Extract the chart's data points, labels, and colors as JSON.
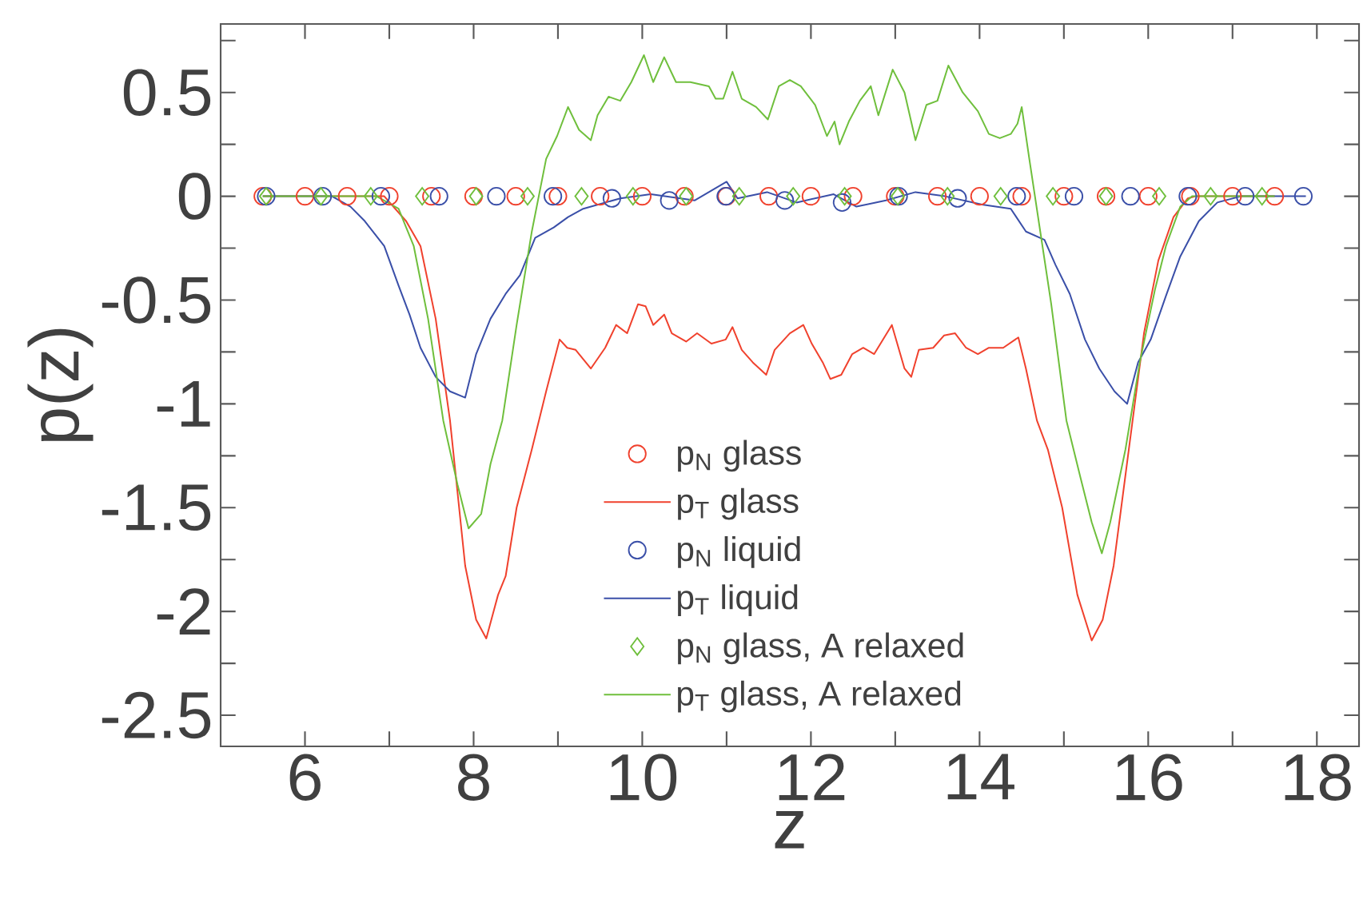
{
  "chart_data": {
    "type": "line",
    "xlabel": "z",
    "ylabel": "p(z)",
    "xlim": [
      5,
      18.5
    ],
    "ylim": [
      -2.65,
      0.83
    ],
    "xticks": [
      6,
      {
        "value": 7,
        "label": null
      },
      8,
      {
        "value": 9,
        "label": null
      },
      10,
      {
        "value": 11,
        "label": null
      },
      12,
      {
        "value": 13,
        "label": null
      },
      14,
      {
        "value": 15,
        "label": null
      },
      16,
      {
        "value": 17,
        "label": null
      },
      18
    ],
    "yticks": [
      -2.5,
      {
        "value": -2.25,
        "label": null
      },
      -2,
      {
        "value": -1.75,
        "label": null
      },
      -1.5,
      {
        "value": -1.25,
        "label": null
      },
      -1,
      {
        "value": -0.75,
        "label": null
      },
      -0.5,
      {
        "value": -0.25,
        "label": null
      },
      0,
      {
        "value": 0.25,
        "label": null
      },
      0.5,
      {
        "value": 0.75,
        "label": null
      }
    ],
    "legend": "bottom",
    "grid": false,
    "series": [
      {
        "name": "p$_{N}$ glass",
        "type": "scatter",
        "marker": "circle",
        "color": "#f0412d",
        "x": [
          5.5,
          6.0,
          6.5,
          7.0,
          7.5,
          8.0,
          8.5,
          9.0,
          9.5,
          10.0,
          10.5,
          11.0,
          11.5,
          12.0,
          12.5,
          13.0,
          13.5,
          14.0,
          14.5,
          15.0,
          15.5,
          16.0,
          16.5,
          17.0,
          17.5
        ],
        "values": [
          0,
          0,
          0,
          0,
          0,
          0,
          0,
          0,
          0,
          0,
          0,
          0,
          0,
          0,
          0,
          0,
          0,
          0,
          0,
          0,
          0,
          0,
          0,
          0,
          0
        ]
      },
      {
        "name": "p$_{T}$ glass",
        "color": "#f0412d",
        "x": [
          5.5,
          6.94,
          7.2,
          7.37,
          7.55,
          7.72,
          7.9,
          8.03,
          8.15,
          8.29,
          8.38,
          8.51,
          8.69,
          8.86,
          9.02,
          9.11,
          9.21,
          9.39,
          9.56,
          9.69,
          9.82,
          9.95,
          10.04,
          10.13,
          10.26,
          10.35,
          10.52,
          10.65,
          10.82,
          10.99,
          11.07,
          11.18,
          11.31,
          11.47,
          11.57,
          11.75,
          11.91,
          12.01,
          12.14,
          12.23,
          12.36,
          12.49,
          12.62,
          12.75,
          12.96,
          13.11,
          13.19,
          13.28,
          13.45,
          13.58,
          13.71,
          13.84,
          13.98,
          14.11,
          14.28,
          14.46,
          14.55,
          14.68,
          14.81,
          14.98,
          15.16,
          15.33,
          15.46,
          15.59,
          15.77,
          15.95,
          16.12,
          16.3,
          16.47,
          16.56,
          17.5
        ],
        "values": [
          0,
          0,
          -0.12,
          -0.24,
          -0.59,
          -1.08,
          -1.78,
          -2.04,
          -2.13,
          -1.92,
          -1.83,
          -1.5,
          -1.22,
          -0.94,
          -0.69,
          -0.73,
          -0.74,
          -0.83,
          -0.73,
          -0.62,
          -0.66,
          -0.52,
          -0.53,
          -0.62,
          -0.57,
          -0.66,
          -0.7,
          -0.66,
          -0.71,
          -0.69,
          -0.63,
          -0.74,
          -0.8,
          -0.86,
          -0.74,
          -0.66,
          -0.62,
          -0.71,
          -0.8,
          -0.88,
          -0.86,
          -0.76,
          -0.73,
          -0.76,
          -0.62,
          -0.83,
          -0.87,
          -0.74,
          -0.73,
          -0.67,
          -0.66,
          -0.73,
          -0.76,
          -0.73,
          -0.73,
          -0.68,
          -0.83,
          -1.08,
          -1.22,
          -1.5,
          -1.92,
          -2.14,
          -2.04,
          -1.78,
          -1.22,
          -0.66,
          -0.31,
          -0.1,
          -0.01,
          0,
          0
        ]
      },
      {
        "name": "p$_{N}$ liquid",
        "type": "scatter",
        "marker": "circle",
        "color": "#3a4fa8",
        "x": [
          5.54,
          6.21,
          6.9,
          7.59,
          8.27,
          8.94,
          9.64,
          10.32,
          10.99,
          11.69,
          12.37,
          13.04,
          13.74,
          14.44,
          15.12,
          15.79,
          16.47,
          17.15,
          17.84
        ],
        "values": [
          0,
          0,
          0,
          0,
          0,
          0,
          -0.01,
          -0.02,
          0,
          -0.02,
          -0.03,
          0,
          -0.01,
          0,
          0,
          0,
          0,
          0,
          0
        ]
      },
      {
        "name": "p$_{T}$ liquid",
        "color": "#3a4fa8",
        "x": [
          5.5,
          6.32,
          6.54,
          6.71,
          6.94,
          7.11,
          7.24,
          7.37,
          7.55,
          7.72,
          7.9,
          8.03,
          8.2,
          8.38,
          8.55,
          8.73,
          8.95,
          9.12,
          9.3,
          9.74,
          10.1,
          10.62,
          11.0,
          11.13,
          11.48,
          11.83,
          12.27,
          12.54,
          12.89,
          13.24,
          13.59,
          14.03,
          14.37,
          14.55,
          14.77,
          14.9,
          15.07,
          15.25,
          15.42,
          15.6,
          15.75,
          15.88,
          16.03,
          16.21,
          16.38,
          16.6,
          16.82,
          17.1,
          17.87
        ],
        "values": [
          0,
          0,
          -0.05,
          -0.12,
          -0.24,
          -0.43,
          -0.57,
          -0.73,
          -0.87,
          -0.94,
          -0.97,
          -0.76,
          -0.59,
          -0.47,
          -0.38,
          -0.2,
          -0.15,
          -0.1,
          -0.06,
          -0.01,
          0.01,
          -0.02,
          0.07,
          -0.01,
          0.02,
          -0.03,
          0.01,
          -0.05,
          -0.02,
          0.02,
          0,
          -0.04,
          -0.06,
          -0.17,
          -0.21,
          -0.33,
          -0.47,
          -0.69,
          -0.83,
          -0.94,
          -1.0,
          -0.8,
          -0.69,
          -0.48,
          -0.29,
          -0.12,
          -0.03,
          0,
          0
        ]
      },
      {
        "name": "p$_{N}$ glass, A relaxed",
        "type": "scatter",
        "marker": "diamond",
        "color": "#6fbf3c",
        "x": [
          5.54,
          6.19,
          6.78,
          7.39,
          8.03,
          8.64,
          9.28,
          9.89,
          10.52,
          11.15,
          11.79,
          12.4,
          13.03,
          13.62,
          14.25,
          14.87,
          15.5,
          16.13,
          16.74,
          17.35
        ],
        "values": [
          0,
          0,
          0,
          0,
          0,
          0,
          0,
          0,
          0,
          0,
          0,
          0,
          0,
          0,
          0,
          0,
          0,
          0,
          0,
          0
        ]
      },
      {
        "name": "p$_{T}$ glass, A relaxed",
        "color": "#6fbf3c",
        "x": [
          5.5,
          6.85,
          7.11,
          7.29,
          7.46,
          7.64,
          7.81,
          7.94,
          8.09,
          8.2,
          8.34,
          8.51,
          8.69,
          8.86,
          8.99,
          9.12,
          9.25,
          9.39,
          9.47,
          9.6,
          9.74,
          9.87,
          10.02,
          10.13,
          10.26,
          10.4,
          10.57,
          10.79,
          10.87,
          10.96,
          11.07,
          11.18,
          11.35,
          11.49,
          11.62,
          11.75,
          11.88,
          12.05,
          12.19,
          12.28,
          12.34,
          12.45,
          12.58,
          12.71,
          12.8,
          12.97,
          13.11,
          13.24,
          13.37,
          13.5,
          13.63,
          13.8,
          13.98,
          14.11,
          14.24,
          14.37,
          14.45,
          14.5,
          14.59,
          14.72,
          14.85,
          15.03,
          15.2,
          15.33,
          15.45,
          15.55,
          15.73,
          15.9,
          16.08,
          16.21,
          16.38,
          16.52,
          17.5
        ],
        "values": [
          0,
          0,
          -0.06,
          -0.24,
          -0.59,
          -1.08,
          -1.39,
          -1.6,
          -1.53,
          -1.29,
          -1.08,
          -0.62,
          -0.17,
          0.18,
          0.29,
          0.43,
          0.32,
          0.27,
          0.39,
          0.48,
          0.46,
          0.55,
          0.68,
          0.55,
          0.67,
          0.55,
          0.55,
          0.53,
          0.47,
          0.47,
          0.6,
          0.47,
          0.43,
          0.37,
          0.53,
          0.56,
          0.53,
          0.44,
          0.29,
          0.36,
          0.25,
          0.36,
          0.46,
          0.53,
          0.39,
          0.61,
          0.5,
          0.27,
          0.44,
          0.46,
          0.63,
          0.5,
          0.41,
          0.3,
          0.28,
          0.3,
          0.35,
          0.43,
          0.18,
          -0.17,
          -0.52,
          -1.08,
          -1.36,
          -1.57,
          -1.72,
          -1.57,
          -1.22,
          -0.8,
          -0.45,
          -0.24,
          -0.05,
          0,
          0
        ]
      }
    ]
  }
}
